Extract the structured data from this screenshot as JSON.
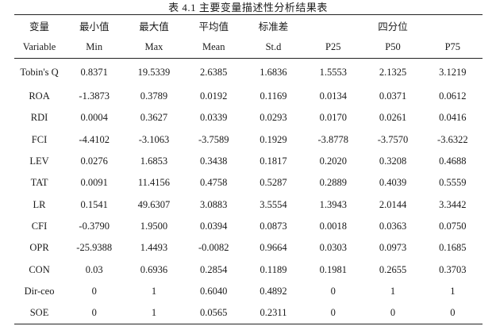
{
  "caption": "表 4.1   主要变量描述性分析结果表",
  "header_cn": {
    "variable": "变量",
    "min": "最小值",
    "max": "最大值",
    "mean": "平均值",
    "sd": "标准差",
    "percentile": "四分位"
  },
  "header_en": [
    "Variable",
    "Min",
    "Max",
    "Mean",
    "St.d",
    "P25",
    "P50",
    "P75"
  ],
  "rows": [
    [
      "Tobin's Q",
      "0.8371",
      "19.5339",
      "2.6385",
      "1.6836",
      "1.5553",
      "2.1325",
      "3.1219"
    ],
    [
      "ROA",
      "-1.3873",
      "0.3789",
      "0.0192",
      "0.1169",
      "0.0134",
      "0.0371",
      "0.0612"
    ],
    [
      "RDI",
      "0.0004",
      "0.3627",
      "0.0339",
      "0.0293",
      "0.0170",
      "0.0261",
      "0.0416"
    ],
    [
      "FCI",
      "-4.4102",
      "-3.1063",
      "-3.7589",
      "0.1929",
      "-3.8778",
      "-3.7570",
      "-3.6322"
    ],
    [
      "LEV",
      "0.0276",
      "1.6853",
      "0.3438",
      "0.1817",
      "0.2020",
      "0.3208",
      "0.4688"
    ],
    [
      "TAT",
      "0.0091",
      "11.4156",
      "0.4758",
      "0.5287",
      "0.2889",
      "0.4039",
      "0.5559"
    ],
    [
      "LR",
      "0.1541",
      "49.6307",
      "3.0883",
      "3.5554",
      "1.3943",
      "2.0144",
      "3.3442"
    ],
    [
      "CFI",
      "-0.3790",
      "1.9500",
      "0.0394",
      "0.0873",
      "0.0018",
      "0.0363",
      "0.0750"
    ],
    [
      "OPR",
      "-25.9388",
      "1.4493",
      "-0.0082",
      "0.9664",
      "0.0303",
      "0.0973",
      "0.1685"
    ],
    [
      "CON",
      "0.03",
      "0.6936",
      "0.2854",
      "0.1189",
      "0.1981",
      "0.2655",
      "0.3703"
    ],
    [
      "Dir-ceo",
      "0",
      "1",
      "0.6040",
      "0.4892",
      "0",
      "1",
      "1"
    ],
    [
      "SOE",
      "0",
      "1",
      "0.0565",
      "0.2311",
      "0",
      "0",
      "0"
    ]
  ]
}
